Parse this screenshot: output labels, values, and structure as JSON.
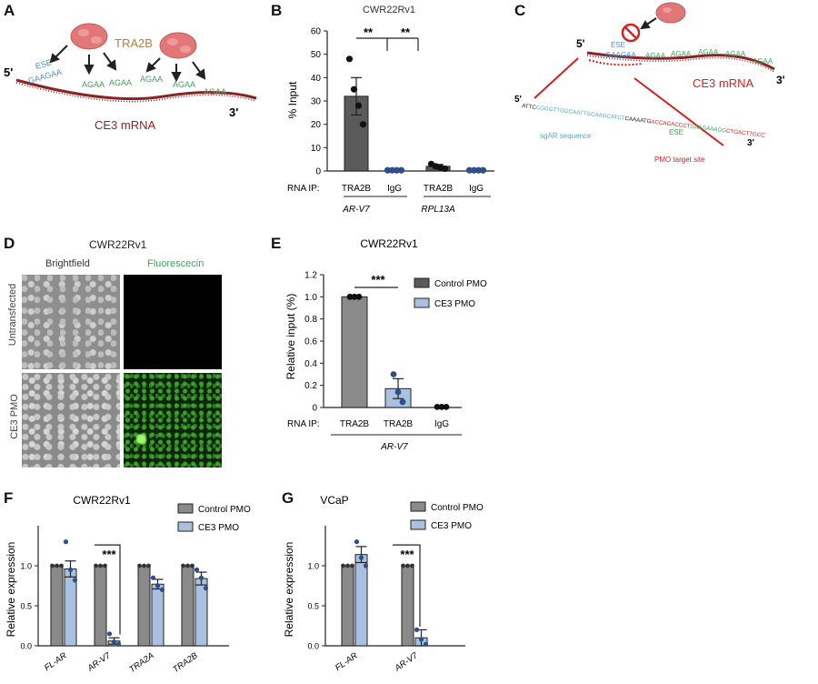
{
  "panels": {
    "A": {
      "letter": "A",
      "protein": "TRA2B",
      "ese": "ESE",
      "motif_ese": "GAAGAA",
      "motif": "AGAA",
      "five_prime": "5'",
      "three_prime": "3'",
      "mrna_label": "CE3 mRNA"
    },
    "B": {
      "letter": "B",
      "sig_1": "**",
      "sig_2": "**",
      "rnaip": "RNA IP:",
      "gene_1": "AR-V7",
      "gene_2": "RPL13A"
    },
    "C": {
      "letter": "C",
      "ese": "ESE",
      "motif_ese": "GAAGAA",
      "motif": "AGAA",
      "five_prime": "5'",
      "three_prime": "3'",
      "mrna_label": "CE3 mRNA",
      "seq_5prime": "5'",
      "seq_3prime": "3'",
      "seq_part1": "ATTC",
      "seq_part2": "CGGGTTGGCAATTGCAAGCATCT",
      "seq_part3": "CAAAATG",
      "seq_part4": "ACCAGACCCT",
      "seq_part5": "GAAGAAAGG",
      "seq_part6": "CTGACTTGCC",
      "sgar_label": "sgAR sequence",
      "pmo_label": "PMO target site",
      "seq_ese": "ESE"
    },
    "D": {
      "letter": "D",
      "title": "CWR22Rv1",
      "col1": "Brightfield",
      "col2": "Fluorescecin",
      "row1": "Untransfected",
      "row2": "CE3 PMO"
    },
    "E": {
      "letter": "E",
      "sig": "***",
      "rnaip": "RNA IP:",
      "gene": "AR-V7"
    },
    "F": {
      "letter": "F",
      "sig": "***"
    },
    "G": {
      "letter": "G",
      "sig": "***"
    }
  },
  "colors": {
    "dark_bar": "#5a5a5a",
    "grey_bar": "#8a8a8a",
    "light_blue": "#a9c1de",
    "dot_blue": "#2e4f8a",
    "ese_blue": "#4a8ed1",
    "motif_green": "#3aa55a",
    "mrna_red": "#8a2424",
    "protein_pink": "#e07878",
    "tra2b_orange": "#c87a2a",
    "line_red": "#d22020"
  },
  "chart_data": [
    {
      "id": "B",
      "type": "bar",
      "title": "CWR22Rv1",
      "ylabel": "% Input",
      "ylim": [
        0,
        60
      ],
      "yticks": [
        "0",
        "10",
        "20",
        "30",
        "40",
        "50",
        "60"
      ],
      "categories": [
        "TRA2B",
        "IgG",
        "TRA2B",
        "IgG"
      ],
      "values": [
        32,
        0.3,
        2,
        0.3
      ],
      "errors": [
        8,
        0,
        0.8,
        0
      ],
      "points": [
        [
          48,
          35,
          28,
          20
        ],
        [
          0.3,
          0.3,
          0.3,
          0.3
        ],
        [
          3,
          2,
          1.5,
          1
        ],
        [
          0.3,
          0.3,
          0.3,
          0.3
        ]
      ]
    },
    {
      "id": "E",
      "type": "bar",
      "title": "CWR22Rv1",
      "ylabel": "Relative input (%)",
      "ylim": [
        0,
        1.2
      ],
      "yticks": [
        "0",
        "0.2",
        "0.4",
        "0.6",
        "0.8",
        "1.0",
        "1.2"
      ],
      "categories": [
        "TRA2B",
        "TRA2B",
        "IgG"
      ],
      "values": [
        1.0,
        0.17,
        0.005
      ],
      "errors": [
        0,
        0.09,
        0
      ],
      "points": [
        [
          1,
          1,
          1
        ],
        [
          0.3,
          0.14,
          0.05
        ],
        [
          0.005,
          0.005,
          0.005
        ]
      ],
      "legend": [
        "Control PMO",
        "CE3 PMO"
      ]
    },
    {
      "id": "F",
      "type": "bar",
      "title": "CWR22Rv1",
      "ylabel": "Relative expression",
      "ylim": [
        0,
        1.5
      ],
      "yticks": [
        "0.0",
        "0.5",
        "1.0"
      ],
      "categories": [
        "FL-AR",
        "AR-V7",
        "TRA2A",
        "TRA2B"
      ],
      "series": [
        {
          "name": "Control PMO",
          "values": [
            1.0,
            1.0,
            1.0,
            1.0
          ]
        },
        {
          "name": "CE3 PMO",
          "values": [
            0.96,
            0.06,
            0.77,
            0.84
          ]
        }
      ],
      "errors_ce3": [
        0.1,
        0.04,
        0.06,
        0.08
      ],
      "points_ce3": [
        [
          1.3,
          0.95,
          0.82
        ],
        [
          0.15,
          0.05,
          0.02
        ],
        [
          0.85,
          0.75,
          0.7
        ],
        [
          0.95,
          0.85,
          0.72
        ]
      ]
    },
    {
      "id": "G",
      "type": "bar",
      "title": "VCaP",
      "ylabel": "Relative expression",
      "ylim": [
        0,
        1.5
      ],
      "yticks": [
        "0.0",
        "0.5",
        "1.0"
      ],
      "categories": [
        "FL-AR",
        "AR-V7"
      ],
      "series": [
        {
          "name": "Control PMO",
          "values": [
            1.0,
            1.0
          ]
        },
        {
          "name": "CE3 PMO",
          "values": [
            1.14,
            0.1
          ]
        }
      ],
      "errors_ce3": [
        0.1,
        0.1
      ],
      "points_ce3": [
        [
          1.3,
          1.1,
          1.0
        ],
        [
          0.2,
          0.08,
          0.02
        ]
      ]
    }
  ]
}
